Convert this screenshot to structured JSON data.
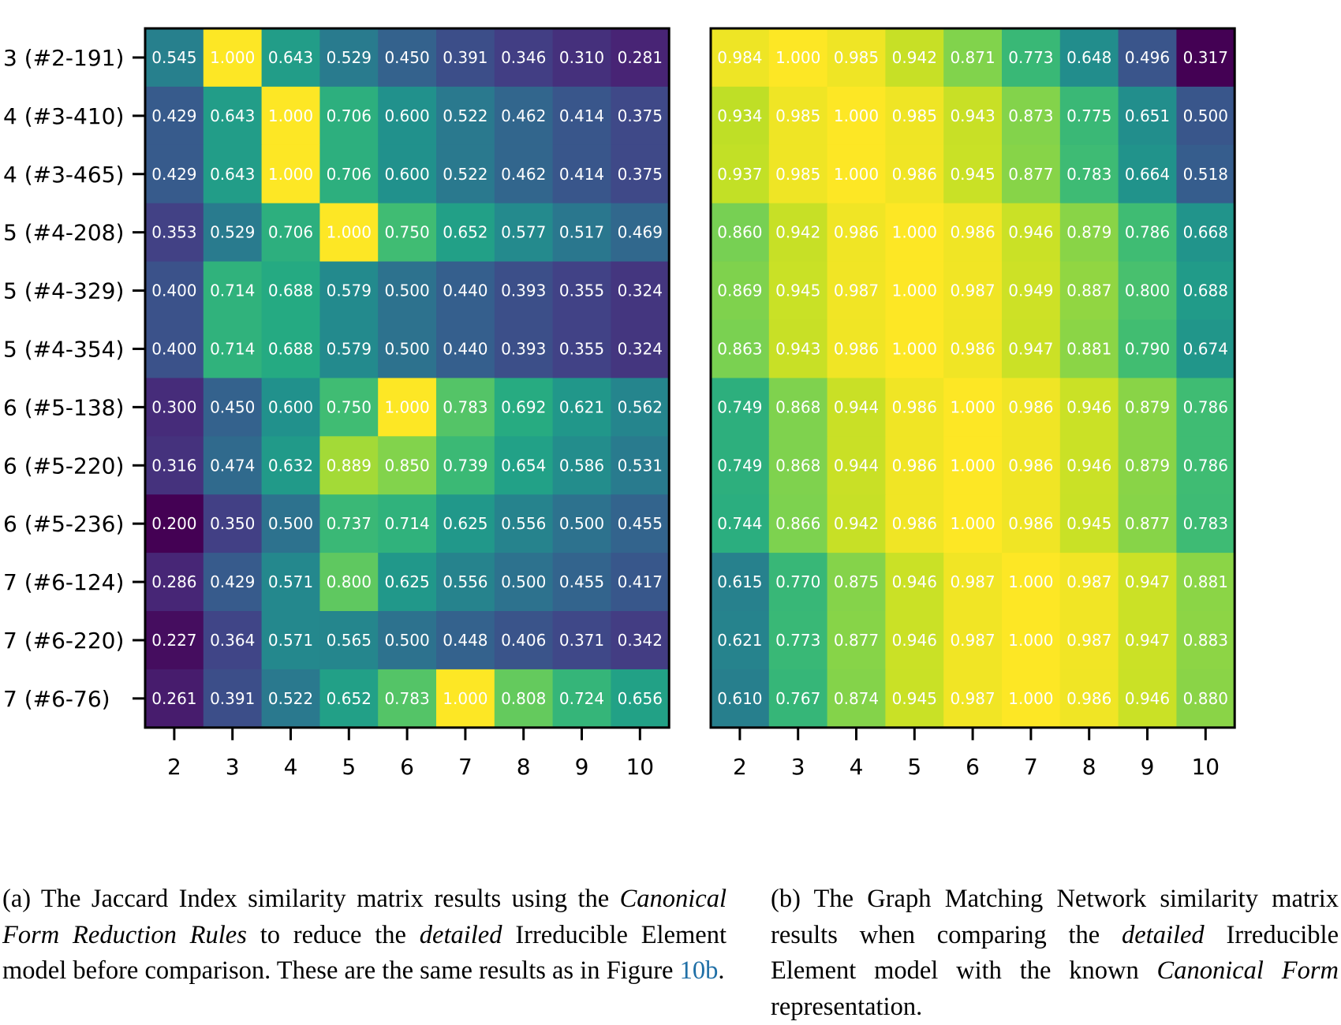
{
  "chart_data": [
    {
      "type": "heatmap",
      "panel": "a",
      "colormap": "viridis",
      "vmin": 0.2,
      "vmax": 1.0,
      "show_y_labels": true,
      "row_labels": [
        "3 (#2-191)",
        "4 (#3-410)",
        "4 (#3-465)",
        "5 (#4-208)",
        "5 (#4-329)",
        "5 (#4-354)",
        "6 (#5-138)",
        "6 (#5-220)",
        "6 (#5-236)",
        "7 (#6-124)",
        "7 (#6-220)",
        "7 (#6-76)"
      ],
      "col_labels": [
        "2",
        "3",
        "4",
        "5",
        "6",
        "7",
        "8",
        "9",
        "10"
      ],
      "values": [
        [
          "0.545",
          "1.000",
          "0.643",
          "0.529",
          "0.450",
          "0.391",
          "0.346",
          "0.310",
          "0.281"
        ],
        [
          "0.429",
          "0.643",
          "1.000",
          "0.706",
          "0.600",
          "0.522",
          "0.462",
          "0.414",
          "0.375"
        ],
        [
          "0.429",
          "0.643",
          "1.000",
          "0.706",
          "0.600",
          "0.522",
          "0.462",
          "0.414",
          "0.375"
        ],
        [
          "0.353",
          "0.529",
          "0.706",
          "1.000",
          "0.750",
          "0.652",
          "0.577",
          "0.517",
          "0.469"
        ],
        [
          "0.400",
          "0.714",
          "0.688",
          "0.579",
          "0.500",
          "0.440",
          "0.393",
          "0.355",
          "0.324"
        ],
        [
          "0.400",
          "0.714",
          "0.688",
          "0.579",
          "0.500",
          "0.440",
          "0.393",
          "0.355",
          "0.324"
        ],
        [
          "0.300",
          "0.450",
          "0.600",
          "0.750",
          "1.000",
          "0.783",
          "0.692",
          "0.621",
          "0.562"
        ],
        [
          "0.316",
          "0.474",
          "0.632",
          "0.889",
          "0.850",
          "0.739",
          "0.654",
          "0.586",
          "0.531"
        ],
        [
          "0.200",
          "0.350",
          "0.500",
          "0.737",
          "0.714",
          "0.625",
          "0.556",
          "0.500",
          "0.455"
        ],
        [
          "0.286",
          "0.429",
          "0.571",
          "0.800",
          "0.625",
          "0.556",
          "0.500",
          "0.455",
          "0.417"
        ],
        [
          "0.227",
          "0.364",
          "0.571",
          "0.565",
          "0.500",
          "0.448",
          "0.406",
          "0.371",
          "0.342"
        ],
        [
          "0.261",
          "0.391",
          "0.522",
          "0.652",
          "0.783",
          "1.000",
          "0.808",
          "0.724",
          "0.656"
        ]
      ]
    },
    {
      "type": "heatmap",
      "panel": "b",
      "colormap": "viridis",
      "vmin": 0.317,
      "vmax": 1.0,
      "show_y_labels": false,
      "col_labels": [
        "2",
        "3",
        "4",
        "5",
        "6",
        "7",
        "8",
        "9",
        "10"
      ],
      "values": [
        [
          "0.984",
          "1.000",
          "0.985",
          "0.942",
          "0.871",
          "0.773",
          "0.648",
          "0.496",
          "0.317"
        ],
        [
          "0.934",
          "0.985",
          "1.000",
          "0.985",
          "0.943",
          "0.873",
          "0.775",
          "0.651",
          "0.500"
        ],
        [
          "0.937",
          "0.985",
          "1.000",
          "0.986",
          "0.945",
          "0.877",
          "0.783",
          "0.664",
          "0.518"
        ],
        [
          "0.860",
          "0.942",
          "0.986",
          "1.000",
          "0.986",
          "0.946",
          "0.879",
          "0.786",
          "0.668"
        ],
        [
          "0.869",
          "0.945",
          "0.987",
          "1.000",
          "0.987",
          "0.949",
          "0.887",
          "0.800",
          "0.688"
        ],
        [
          "0.863",
          "0.943",
          "0.986",
          "1.000",
          "0.986",
          "0.947",
          "0.881",
          "0.790",
          "0.674"
        ],
        [
          "0.749",
          "0.868",
          "0.944",
          "0.986",
          "1.000",
          "0.986",
          "0.946",
          "0.879",
          "0.786"
        ],
        [
          "0.749",
          "0.868",
          "0.944",
          "0.986",
          "1.000",
          "0.986",
          "0.946",
          "0.879",
          "0.786"
        ],
        [
          "0.744",
          "0.866",
          "0.942",
          "0.986",
          "1.000",
          "0.986",
          "0.945",
          "0.877",
          "0.783"
        ],
        [
          "0.615",
          "0.770",
          "0.875",
          "0.946",
          "0.987",
          "1.000",
          "0.987",
          "0.947",
          "0.881"
        ],
        [
          "0.621",
          "0.773",
          "0.877",
          "0.946",
          "0.987",
          "1.000",
          "0.987",
          "0.947",
          "0.883"
        ],
        [
          "0.610",
          "0.767",
          "0.874",
          "0.945",
          "0.987",
          "1.000",
          "0.986",
          "0.946",
          "0.880"
        ]
      ]
    }
  ],
  "captions": {
    "a": {
      "label": "(a)",
      "text_1": " The Jaccard Index similarity matrix results using the ",
      "em_1": "Canonical Form Reduction Rules",
      "text_2": " to reduce the ",
      "em_2": "detailed",
      "text_3": " Irreducible Element model before comparison. These are the same results as in Figure ",
      "ref": "10b",
      "text_4": "."
    },
    "b": {
      "label": "(b)",
      "text_1": " The Graph Matching Network similarity matrix results when comparing the ",
      "em_1": "detailed",
      "text_2": " Irreducible Element model with the known ",
      "em_2": "Canonical Form",
      "text_3": " representation."
    }
  }
}
